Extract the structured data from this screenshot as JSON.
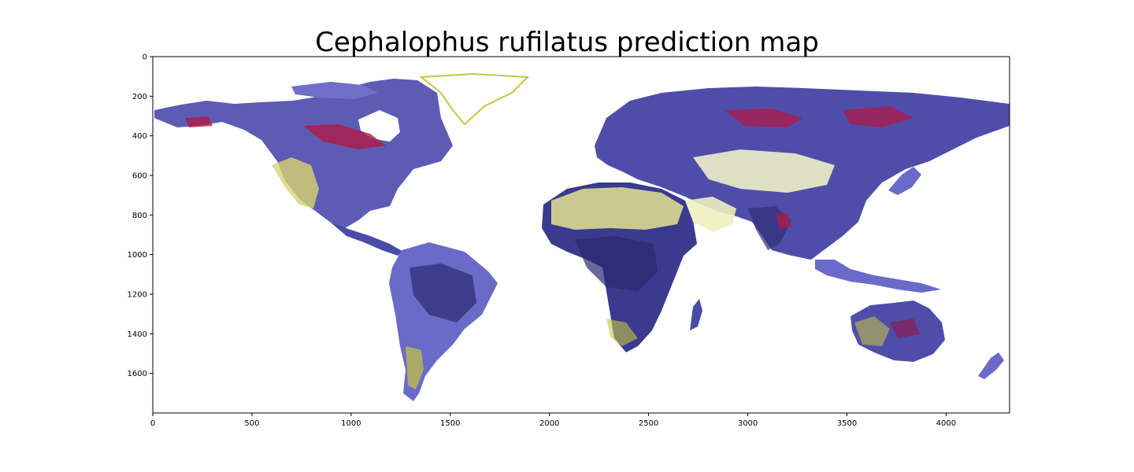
{
  "title": "Cephalophus rufilatus prediction map",
  "map": {
    "type": "raster-map",
    "xlim": [
      0,
      4320
    ],
    "ylim": [
      1800,
      0
    ],
    "x_ticks": [
      0,
      500,
      1000,
      1500,
      2000,
      2500,
      3000,
      3500,
      4000
    ],
    "y_ticks": [
      0,
      200,
      400,
      600,
      800,
      1000,
      1200,
      1400,
      1600
    ],
    "colors": {
      "high": "#b01a48",
      "dark": "#2f2f77",
      "mid": "#5f5fb8",
      "light": "#9494e0",
      "yellow": "#c8c642",
      "pale": "#fbfbe6"
    }
  }
}
